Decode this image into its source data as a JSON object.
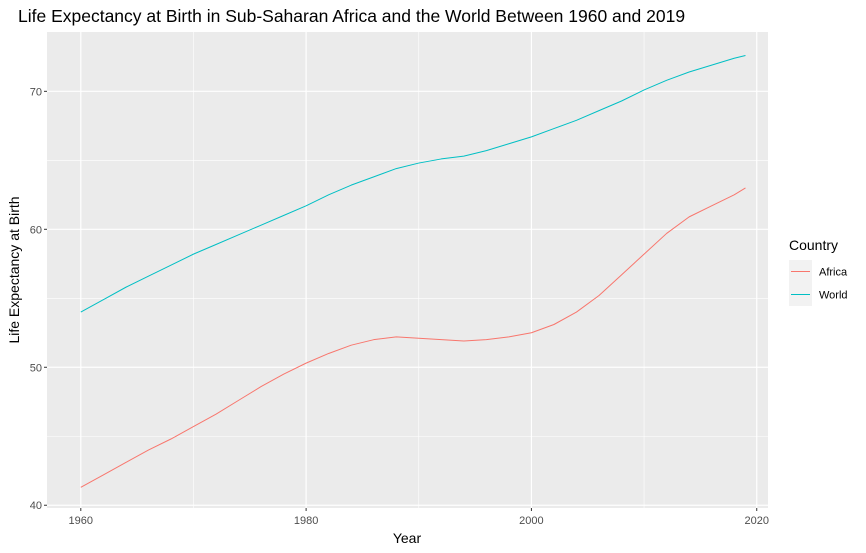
{
  "chart_data": {
    "type": "line",
    "title": "Life Expectancy at Birth in Sub-Saharan Africa and the World Between 1960 and 2019",
    "xlabel": "Year",
    "ylabel": "Life Expectancy at Birth",
    "xlim": [
      1957,
      2021
    ],
    "ylim": [
      39.8,
      74.3
    ],
    "x_ticks": [
      1960,
      1980,
      2000,
      2020
    ],
    "x_minor_ticks": [
      1970,
      1990,
      2010
    ],
    "y_ticks": [
      40,
      50,
      60,
      70
    ],
    "y_minor_ticks": [
      45,
      55,
      65
    ],
    "grid": true,
    "panel_background": "#ebebeb",
    "legend": {
      "title": "Country",
      "placement": "right"
    },
    "series": [
      {
        "name": "Africa",
        "color": "#f8766d",
        "x": [
          1960,
          1962,
          1964,
          1966,
          1968,
          1970,
          1972,
          1974,
          1976,
          1978,
          1980,
          1982,
          1984,
          1986,
          1988,
          1990,
          1992,
          1994,
          1996,
          1998,
          2000,
          2002,
          2004,
          2006,
          2008,
          2010,
          2012,
          2014,
          2016,
          2018,
          2019
        ],
        "y": [
          41.3,
          42.2,
          43.1,
          44.0,
          44.8,
          45.7,
          46.6,
          47.6,
          48.6,
          49.5,
          50.3,
          51.0,
          51.6,
          52.0,
          52.2,
          52.1,
          52.0,
          51.9,
          52.0,
          52.2,
          52.5,
          53.1,
          54.0,
          55.2,
          56.7,
          58.2,
          59.7,
          60.9,
          61.7,
          62.5,
          63.0
        ]
      },
      {
        "name": "World",
        "color": "#00bfc4",
        "x": [
          1960,
          1962,
          1964,
          1966,
          1968,
          1970,
          1972,
          1974,
          1976,
          1978,
          1980,
          1982,
          1984,
          1986,
          1988,
          1990,
          1992,
          1994,
          1996,
          1998,
          2000,
          2002,
          2004,
          2006,
          2008,
          2010,
          2012,
          2014,
          2016,
          2018,
          2019
        ],
        "y": [
          54.0,
          54.9,
          55.8,
          56.6,
          57.4,
          58.2,
          58.9,
          59.6,
          60.3,
          61.0,
          61.7,
          62.5,
          63.2,
          63.8,
          64.4,
          64.8,
          65.1,
          65.3,
          65.7,
          66.2,
          66.7,
          67.3,
          67.9,
          68.6,
          69.3,
          70.1,
          70.8,
          71.4,
          71.9,
          72.4,
          72.6
        ]
      }
    ]
  }
}
